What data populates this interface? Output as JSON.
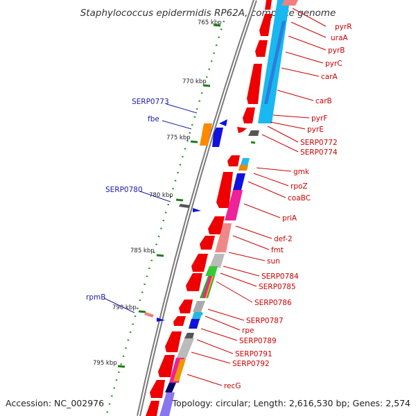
{
  "title": "Staphylococcus epidermidis RP62A, complete genome",
  "footer": {
    "accession": "Accession: NC_002976",
    "topology": "Topology: circular; Length: 2,616,530 bp; Genes: 2,574"
  },
  "scale": [
    "765 kbp",
    "770 kbp",
    "775 kbp",
    "780 kbp",
    "785 kbp",
    "790 kbp",
    "795 kbp"
  ],
  "right_labels": [
    "pyrR",
    "uraA",
    "pyrB",
    "pyrC",
    "carA",
    "carB",
    "pyrF",
    "pyrE",
    "SERP0772",
    "SERP0774",
    "gmk",
    "rpoZ",
    "coaBC",
    "priA",
    "def-2",
    "fmt",
    "sun",
    "SERP0784",
    "SERP0785",
    "SERP0786",
    "SERP0787",
    "rpe",
    "SERP0789",
    "SERP0791",
    "SERP0792",
    "recG"
  ],
  "left_labels": [
    "SERP0773",
    "fbe",
    "SERP0780",
    "rpmB"
  ],
  "colors": {
    "forward_genes": "#ee0000",
    "reverse_genes": "#0000dd",
    "right_labels": "#cc0000",
    "left_labels": "#1a1aa8",
    "backbone": "#777777",
    "tick_dots": "#228b22"
  }
}
